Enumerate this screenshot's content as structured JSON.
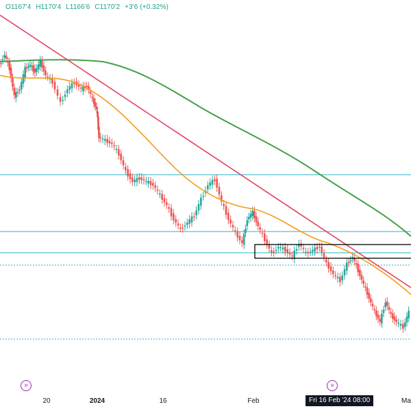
{
  "legend": {
    "open": "O1167'4",
    "high": "H1170'4",
    "low": "L1166'6",
    "close": "C1170'2",
    "change": "+3'6 (+0.32%)"
  },
  "colors": {
    "up": "#26a69a",
    "down": "#ef5350",
    "ma_short": "#f59c1a",
    "ma_long": "#43a047",
    "trendline": "#e0455f",
    "hline": "#4fc3d6",
    "box": "#000000",
    "event": "#9c27b0"
  },
  "x_axis": {
    "labels": [
      "20",
      "2024",
      "16",
      "Feb",
      "Ma"
    ],
    "crosshair_label": "Fri 16 Feb '24   08:00"
  },
  "icons": {
    "event_marker_1": "double-chevron-right-icon",
    "event_marker_2": "double-chevron-right-icon"
  }
}
